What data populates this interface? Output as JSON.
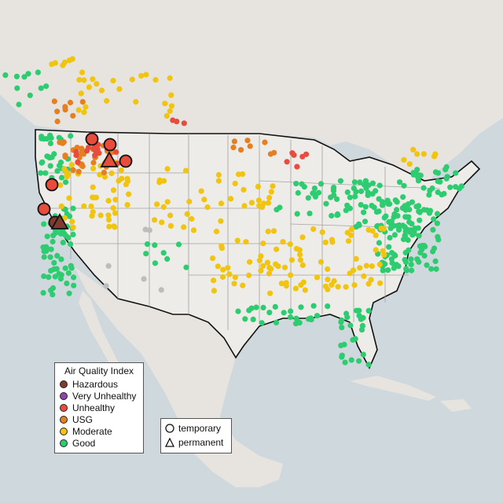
{
  "legend": {
    "title": "Air Quality Index",
    "items": [
      {
        "label": "Hazardous",
        "color": "#7e3b2f"
      },
      {
        "label": "Very Unhealthy",
        "color": "#8e44ad"
      },
      {
        "label": "Unhealthy",
        "color": "#e74c3c"
      },
      {
        "label": "USG",
        "color": "#e67e22"
      },
      {
        "label": "Moderate",
        "color": "#f1c40f"
      },
      {
        "label": "Good",
        "color": "#2ecc71"
      }
    ]
  },
  "shape_legend": {
    "items": [
      {
        "label": "temporary",
        "shape": "circle"
      },
      {
        "label": "permanent",
        "shape": "triangle"
      }
    ]
  },
  "colors": {
    "water": "#cfd8dc",
    "land": "#ece9e4",
    "us_land": "#eeece8",
    "border": "#111111",
    "state_lines": "#9e9e9e",
    "no_data": "#bdbdbd"
  }
}
